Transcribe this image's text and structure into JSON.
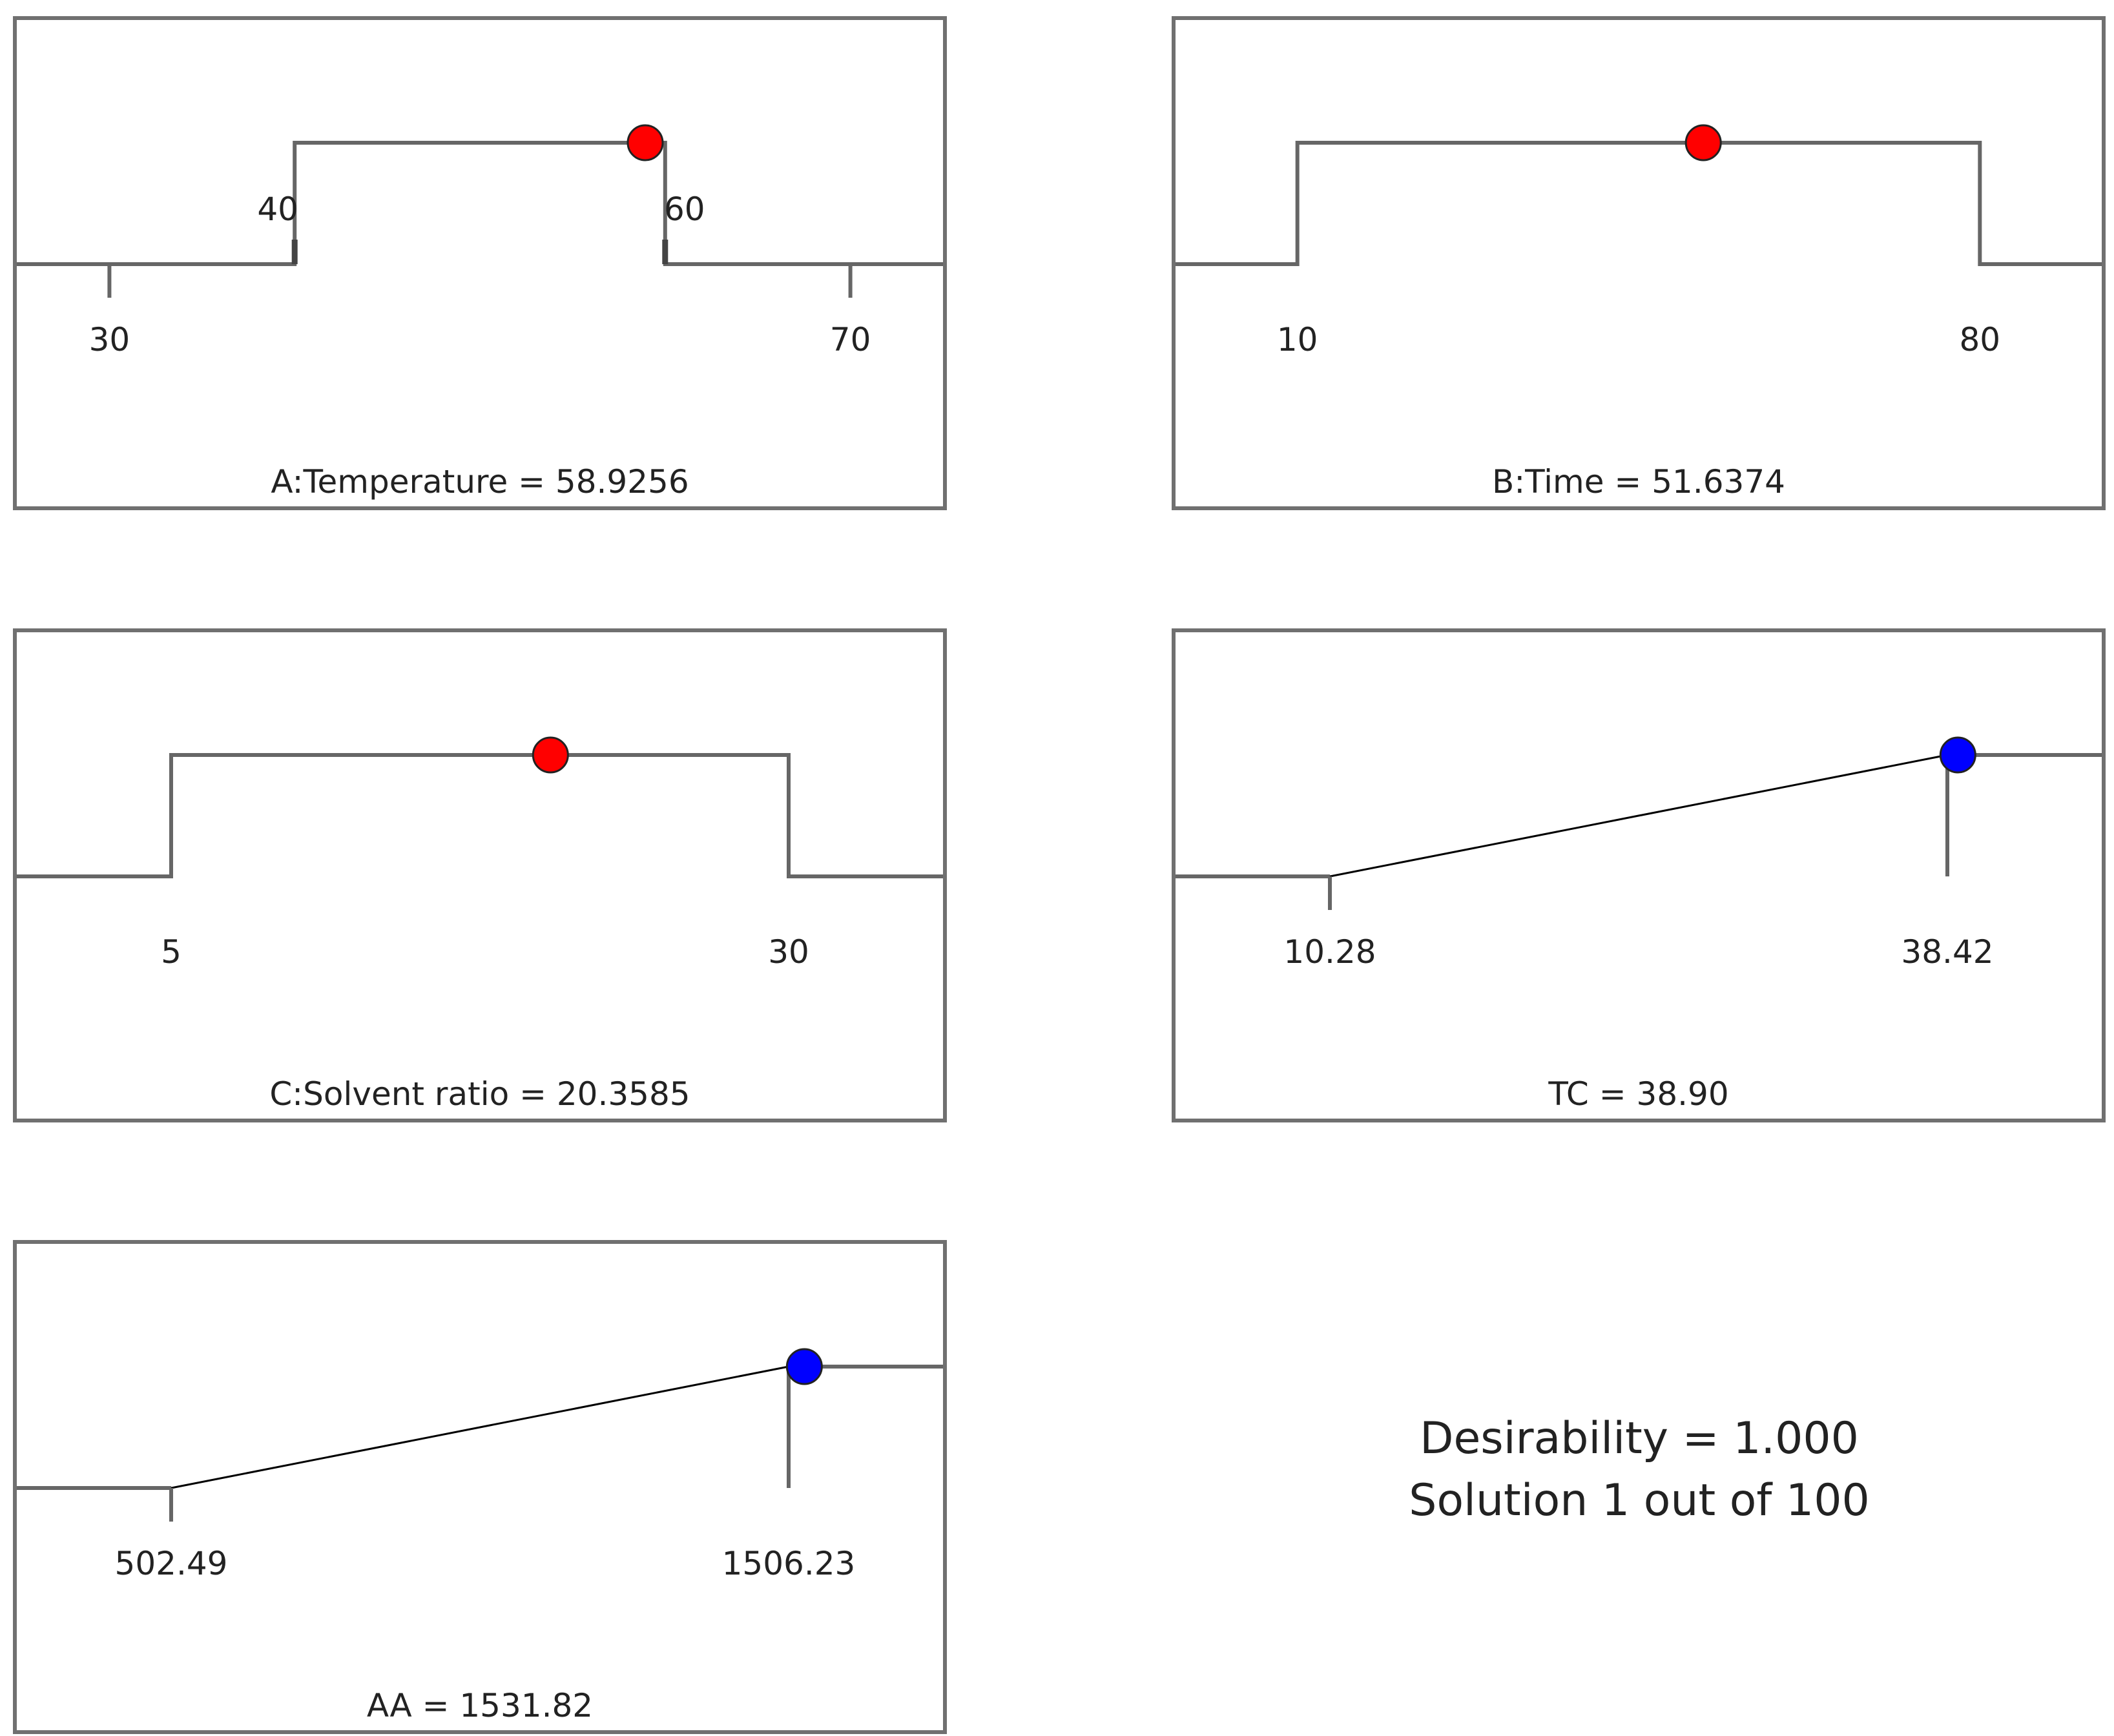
{
  "chart_data": [
    {
      "type": "line",
      "role": "factor",
      "name": "A:Temperature",
      "value_label": "58.9256",
      "value": 58.9256,
      "axis_range": [
        25,
        75
      ],
      "ticks": [
        {
          "label": "30",
          "value": 30,
          "kind": "bottom"
        },
        {
          "label": "40",
          "value": 40,
          "kind": "step"
        },
        {
          "label": "60",
          "value": 60,
          "kind": "step"
        },
        {
          "label": "70",
          "value": 70,
          "kind": "bottom"
        }
      ],
      "limits": [
        40,
        60
      ],
      "title": "A:Temperature = 58.9256",
      "marker_color": "#ff0000"
    },
    {
      "type": "line",
      "role": "factor",
      "name": "B:Time",
      "value_label": "51.6374",
      "value": 51.6374,
      "axis_range": [
        -2.5,
        92.5
      ],
      "ticks": [
        {
          "label": "10",
          "value": 10,
          "kind": "bottom"
        },
        {
          "label": "80",
          "value": 80,
          "kind": "bottom"
        }
      ],
      "limits": [
        10,
        80
      ],
      "title": "B:Time = 51.6374",
      "marker_color": "#ff0000"
    },
    {
      "type": "line",
      "role": "factor",
      "name": "C:Solvent ratio",
      "value_label": "20.3585",
      "value": 20.3585,
      "axis_range": [
        -1.25,
        36.25
      ],
      "ticks": [
        {
          "label": "5",
          "value": 5,
          "kind": "bottom"
        },
        {
          "label": "30",
          "value": 30,
          "kind": "bottom"
        }
      ],
      "limits": [
        5,
        30
      ],
      "title": "C:Solvent ratio = 20.3585",
      "marker_color": "#ff0000"
    },
    {
      "type": "line",
      "role": "response",
      "name": "TC",
      "value_label": "38.90",
      "value": 38.9,
      "axis_range": [
        3.245,
        45.455
      ],
      "ticks": [
        {
          "label": "10.28",
          "value": 10.28,
          "kind": "bottom"
        },
        {
          "label": "38.42",
          "value": 38.42,
          "kind": "bottom"
        }
      ],
      "limits": [
        10.28,
        38.42
      ],
      "title": "TC = 38.90",
      "marker_color": "#0000ff"
    },
    {
      "type": "line",
      "role": "response",
      "name": "AA",
      "value_label": "1531.82",
      "value": 1531.82,
      "axis_range": [
        251.55,
        1757.17
      ],
      "ticks": [
        {
          "label": "502.49",
          "value": 502.49,
          "kind": "bottom"
        },
        {
          "label": "1506.23",
          "value": 1506.23,
          "kind": "bottom"
        }
      ],
      "limits": [
        502.49,
        1506.23
      ],
      "title": "AA = 1531.82",
      "marker_color": "#0000ff"
    }
  ],
  "summary": {
    "desirability": "Desirability = 1.000",
    "solution": "Solution 1 out of 100"
  },
  "colors": {
    "frame": "#707070",
    "line": "#666666",
    "ramp": "#000000"
  }
}
